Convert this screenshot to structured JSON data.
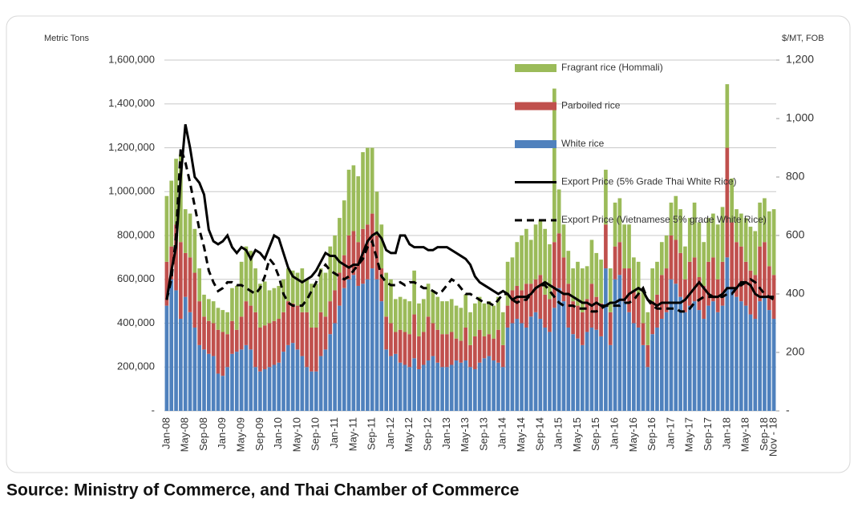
{
  "chart_data": {
    "type": "bar",
    "stacked": true,
    "y_label": "Metric Tons",
    "y2_label": "$/MT, FOB",
    "source": "Source: Ministry of Commerce, and Thai Chamber of Commerce",
    "categories": [
      "Jan-08",
      null,
      null,
      null,
      "May-08",
      null,
      null,
      null,
      "Sep-08",
      null,
      null,
      null,
      "Jan-09",
      null,
      null,
      null,
      "May-09",
      null,
      null,
      null,
      "Sep-09",
      null,
      null,
      null,
      "Jan-10",
      null,
      null,
      null,
      "May-10",
      null,
      null,
      null,
      "Sep-10",
      null,
      null,
      null,
      "Jan-11",
      null,
      null,
      null,
      "May-11",
      null,
      null,
      null,
      "Sep-11",
      null,
      null,
      null,
      "Jan-12",
      null,
      null,
      null,
      "May-12",
      null,
      null,
      null,
      "Sep-12",
      null,
      null,
      null,
      "Jan-13",
      null,
      null,
      null,
      "May-13",
      null,
      null,
      null,
      "Sep-13",
      null,
      null,
      null,
      "Jan-14",
      null,
      null,
      null,
      "May-14",
      null,
      null,
      null,
      "Sep-14",
      null,
      null,
      null,
      "Jan-15",
      null,
      null,
      null,
      "May-15",
      null,
      null,
      null,
      "Sep-15",
      null,
      null,
      null,
      "Jan-16",
      null,
      null,
      null,
      "May-16",
      null,
      null,
      null,
      "Sep-16",
      null,
      null,
      null,
      "Jan-17",
      null,
      null,
      null,
      "May-17",
      null,
      null,
      null,
      "Sep-17",
      null,
      null,
      null,
      "Jan-18",
      null,
      null,
      null,
      "May-18",
      null,
      null,
      null,
      "Sep-18",
      null,
      "Nov - 18"
    ],
    "ylim": [
      0,
      1600000
    ],
    "yticks": [
      {
        "value": 0,
        "label": "-"
      },
      {
        "value": 200000,
        "label": "200,000"
      },
      {
        "value": 400000,
        "label": "400,000"
      },
      {
        "value": 600000,
        "label": "600,000"
      },
      {
        "value": 800000,
        "label": "800,000"
      },
      {
        "value": 1000000,
        "label": "1,000,000"
      },
      {
        "value": 1200000,
        "label": "1,200,000"
      },
      {
        "value": 1400000,
        "label": "1,400,000"
      },
      {
        "value": 1600000,
        "label": "1,600,000"
      }
    ],
    "y2lim": [
      0,
      1200
    ],
    "y2ticks": [
      {
        "value": 0,
        "label": "-"
      },
      200,
      400,
      600,
      800,
      {
        "value": 1000,
        "label": "1,000"
      },
      {
        "value": 1200,
        "label": "1,200"
      }
    ],
    "grid": true,
    "legend": "upper right",
    "series": [
      {
        "name": "White rice",
        "type": "bar",
        "color": "#4f81bd",
        "values": [
          480000,
          600000,
          550000,
          420000,
          520000,
          450000,
          380000,
          300000,
          280000,
          260000,
          250000,
          170000,
          160000,
          200000,
          260000,
          270000,
          280000,
          300000,
          280000,
          200000,
          180000,
          190000,
          200000,
          210000,
          220000,
          270000,
          300000,
          310000,
          280000,
          250000,
          200000,
          180000,
          180000,
          250000,
          280000,
          350000,
          400000,
          480000,
          560000,
          600000,
          620000,
          570000,
          580000,
          600000,
          650000,
          600000,
          500000,
          280000,
          250000,
          260000,
          220000,
          210000,
          200000,
          240000,
          190000,
          210000,
          230000,
          250000,
          220000,
          200000,
          200000,
          210000,
          230000,
          220000,
          230000,
          200000,
          190000,
          220000,
          240000,
          250000,
          230000,
          220000,
          200000,
          380000,
          400000,
          420000,
          400000,
          380000,
          430000,
          450000,
          420000,
          380000,
          360000,
          470000,
          560000,
          500000,
          380000,
          350000,
          330000,
          300000,
          360000,
          380000,
          370000,
          340000,
          650000,
          300000,
          600000,
          620000,
          500000,
          450000,
          400000,
          380000,
          300000,
          200000,
          350000,
          380000,
          420000,
          450000,
          600000,
          580000,
          520000,
          450000,
          480000,
          500000,
          460000,
          420000,
          480000,
          500000,
          450000,
          480000,
          700000,
          560000,
          520000,
          500000,
          480000,
          440000,
          420000,
          500000,
          520000,
          460000,
          420000
        ]
      },
      {
        "name": "Parboiled rice",
        "type": "bar",
        "color": "#c0504d",
        "values": [
          200000,
          150000,
          300000,
          350000,
          200000,
          250000,
          250000,
          200000,
          150000,
          150000,
          150000,
          200000,
          200000,
          150000,
          150000,
          100000,
          150000,
          200000,
          200000,
          250000,
          200000,
          200000,
          200000,
          200000,
          200000,
          180000,
          200000,
          180000,
          200000,
          200000,
          250000,
          200000,
          200000,
          200000,
          150000,
          150000,
          150000,
          150000,
          150000,
          200000,
          200000,
          200000,
          250000,
          250000,
          250000,
          200000,
          150000,
          150000,
          150000,
          100000,
          150000,
          150000,
          150000,
          200000,
          150000,
          150000,
          200000,
          150000,
          150000,
          150000,
          150000,
          150000,
          100000,
          100000,
          150000,
          100000,
          150000,
          150000,
          100000,
          100000,
          100000,
          150000,
          100000,
          100000,
          150000,
          150000,
          150000,
          200000,
          150000,
          150000,
          200000,
          150000,
          150000,
          300000,
          250000,
          200000,
          200000,
          150000,
          150000,
          150000,
          150000,
          200000,
          150000,
          150000,
          200000,
          150000,
          150000,
          150000,
          150000,
          200000,
          150000,
          150000,
          100000,
          100000,
          150000,
          150000,
          200000,
          200000,
          200000,
          200000,
          200000,
          150000,
          200000,
          200000,
          150000,
          150000,
          200000,
          200000,
          150000,
          200000,
          500000,
          300000,
          250000,
          250000,
          200000,
          200000,
          200000,
          250000,
          250000,
          200000,
          200000
        ]
      },
      {
        "name": "Fragrant rice (Hommali)",
        "type": "bar",
        "color": "#9bbb59",
        "values": [
          300000,
          300000,
          300000,
          400000,
          200000,
          200000,
          200000,
          150000,
          100000,
          100000,
          100000,
          100000,
          100000,
          100000,
          150000,
          200000,
          250000,
          250000,
          250000,
          200000,
          200000,
          200000,
          150000,
          150000,
          150000,
          150000,
          150000,
          150000,
          150000,
          200000,
          150000,
          200000,
          200000,
          200000,
          200000,
          250000,
          250000,
          250000,
          250000,
          300000,
          300000,
          300000,
          350000,
          350000,
          300000,
          200000,
          200000,
          200000,
          200000,
          150000,
          150000,
          150000,
          150000,
          200000,
          150000,
          150000,
          150000,
          150000,
          150000,
          150000,
          150000,
          150000,
          150000,
          150000,
          150000,
          150000,
          150000,
          150000,
          150000,
          150000,
          150000,
          150000,
          150000,
          200000,
          150000,
          200000,
          250000,
          250000,
          200000,
          250000,
          250000,
          300000,
          250000,
          700000,
          200000,
          150000,
          150000,
          150000,
          200000,
          200000,
          150000,
          200000,
          200000,
          200000,
          250000,
          200000,
          200000,
          200000,
          200000,
          200000,
          150000,
          150000,
          150000,
          150000,
          150000,
          150000,
          150000,
          150000,
          150000,
          200000,
          200000,
          150000,
          200000,
          250000,
          250000,
          200000,
          200000,
          200000,
          250000,
          250000,
          290000,
          200000,
          150000,
          150000,
          200000,
          200000,
          200000,
          200000,
          200000,
          250000,
          300000
        ]
      },
      {
        "name": "Export Price (5% Grade Thai White Rice)",
        "type": "line",
        "axis": "y2",
        "color": "#000000",
        "line_style": "solid",
        "values": [
          380,
          480,
          560,
          800,
          980,
          900,
          800,
          780,
          740,
          620,
          580,
          570,
          580,
          600,
          560,
          540,
          560,
          550,
          520,
          550,
          540,
          520,
          560,
          600,
          590,
          540,
          490,
          460,
          450,
          440,
          450,
          460,
          480,
          510,
          540,
          530,
          530,
          510,
          500,
          490,
          500,
          500,
          540,
          580,
          600,
          610,
          590,
          550,
          540,
          540,
          600,
          600,
          570,
          560,
          560,
          560,
          550,
          550,
          560,
          560,
          560,
          550,
          540,
          530,
          520,
          500,
          460,
          440,
          430,
          420,
          410,
          400,
          410,
          400,
          380,
          390,
          390,
          390,
          400,
          420,
          430,
          440,
          430,
          420,
          410,
          400,
          400,
          390,
          380,
          370,
          370,
          360,
          370,
          360,
          360,
          370,
          370,
          380,
          380,
          400,
          410,
          420,
          410,
          380,
          370,
          360,
          370,
          370,
          370,
          370,
          370,
          380,
          400,
          420,
          440,
          420,
          400,
          390,
          390,
          400,
          420,
          420,
          420,
          440,
          440,
          430,
          400,
          390,
          390,
          390,
          390
        ]
      },
      {
        "name": "Export Price (Vietnamese 5% grade White Rice)",
        "type": "line",
        "axis": "y2",
        "color": "#000000",
        "line_style": "dashed",
        "values": [
          380,
          450,
          600,
          900,
          850,
          780,
          700,
          620,
          560,
          480,
          440,
          410,
          420,
          440,
          440,
          430,
          430,
          420,
          410,
          400,
          420,
          460,
          520,
          500,
          460,
          400,
          370,
          360,
          360,
          360,
          380,
          410,
          440,
          480,
          500,
          480,
          470,
          460,
          450,
          460,
          480,
          500,
          520,
          560,
          580,
          520,
          460,
          440,
          430,
          430,
          440,
          430,
          440,
          440,
          430,
          420,
          420,
          410,
          400,
          410,
          430,
          450,
          440,
          420,
          400,
          400,
          390,
          380,
          370,
          370,
          360,
          380,
          400,
          400,
          380,
          370,
          380,
          380,
          400,
          420,
          430,
          430,
          410,
          390,
          370,
          360,
          360,
          360,
          350,
          350,
          350,
          340,
          340,
          350,
          360,
          360,
          360,
          360,
          370,
          370,
          380,
          400,
          420,
          380,
          360,
          350,
          350,
          350,
          350,
          350,
          340,
          340,
          350,
          370,
          380,
          390,
          390,
          390,
          390,
          390,
          400,
          400,
          420,
          430,
          440,
          450,
          440,
          420,
          400,
          390,
          380
        ]
      }
    ]
  }
}
